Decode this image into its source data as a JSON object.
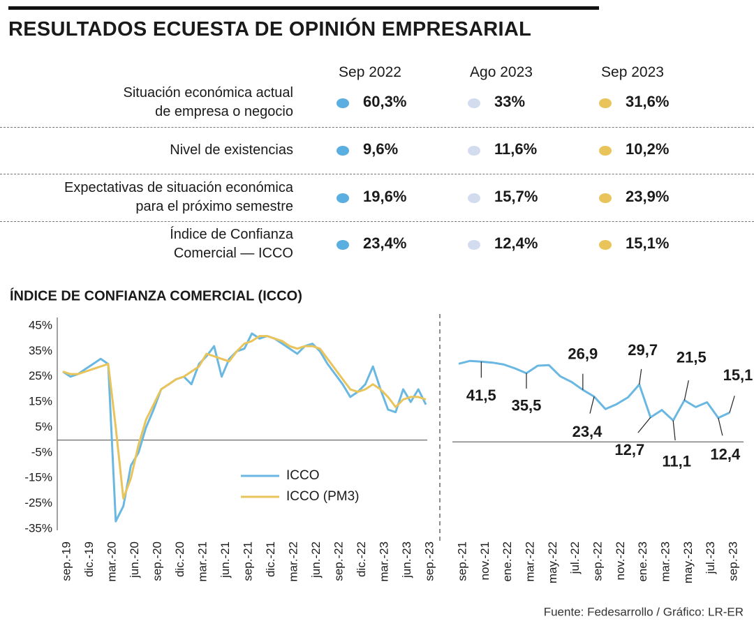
{
  "header": {
    "title": "RESULTADOS ECUESTA DE OPINIÓN EMPRESARIAL"
  },
  "table": {
    "columns": [
      {
        "label": "Sep 2022",
        "color": "#5aaee0"
      },
      {
        "label": "Ago 2023",
        "color": "#d3dcef"
      },
      {
        "label": "Sep 2023",
        "color": "#e8c45a"
      }
    ],
    "rows": [
      {
        "label": "Situación económica actual\nde empresa o negocio",
        "values": [
          "60,3%",
          "33%",
          "31,6%"
        ]
      },
      {
        "label": "Nivel de existencias",
        "values": [
          "9,6%",
          "11,6%",
          "10,2%"
        ]
      },
      {
        "label": "Expectativas de situación económica\npara el próximo semestre",
        "values": [
          "19,6%",
          "15,7%",
          "23,9%"
        ]
      },
      {
        "label": "Índice de Confianza\nComercial — ICCO",
        "values": [
          "23,4%",
          "12,4%",
          "15,1%"
        ]
      }
    ]
  },
  "chart_data": [
    {
      "type": "line",
      "title": "ÍNDICE DE CONFIANZA COMERCIAL (ICCO)",
      "categories": [
        "sep.-19",
        null,
        null,
        "dic.-19",
        null,
        null,
        "mar.-20",
        null,
        null,
        "jun.-20",
        null,
        null,
        "sep.-20",
        null,
        null,
        "dic.-20",
        null,
        null,
        "mar.-21",
        null,
        null,
        "jun.-21",
        null,
        null,
        "sep.-21",
        null,
        null,
        "dic.-21",
        null,
        null,
        "mar.-22",
        null,
        null,
        "jun.-22",
        null,
        null,
        "sep.-22",
        null,
        null,
        "dic.-22",
        null,
        null,
        "mar.-23",
        null,
        null,
        "jun.-23",
        null,
        null,
        "sep.-23"
      ],
      "series": [
        {
          "name": "ICCO",
          "color": "#6ab8e2",
          "values": [
            27,
            25,
            26,
            28,
            30,
            32,
            30,
            -32,
            -26,
            -10,
            -5,
            5,
            12,
            20,
            22,
            24,
            25,
            22,
            30,
            33,
            37,
            25,
            32,
            35,
            36,
            42,
            40,
            41,
            40,
            38,
            36,
            34,
            37,
            38,
            35,
            30,
            26,
            22,
            17,
            19,
            22,
            29,
            20,
            12,
            11,
            20,
            15,
            20,
            14
          ]
        },
        {
          "name": "ICCO (PM3)",
          "color": "#e8c45a",
          "values": [
            27,
            26,
            26,
            27,
            28,
            29,
            30,
            5,
            -23,
            -15,
            -2,
            8,
            14,
            20,
            22,
            24,
            25,
            27,
            29,
            34,
            33,
            32,
            31,
            35,
            38,
            39,
            41,
            41,
            40,
            39,
            37,
            36,
            37,
            37,
            36,
            32,
            28,
            24,
            20,
            19,
            20,
            22,
            20,
            17,
            13,
            16,
            17,
            17,
            16
          ]
        }
      ],
      "ylim": [
        -35,
        45
      ],
      "yticks": [
        {
          "value": 45,
          "label": "45%"
        },
        {
          "value": 35,
          "label": "35%"
        },
        {
          "value": 25,
          "label": "25%"
        },
        {
          "value": 15,
          "label": "15%"
        },
        {
          "value": 5,
          "label": "5%"
        },
        {
          "value": -5,
          "label": "-5%"
        },
        {
          "value": -15,
          "label": "-15%"
        },
        {
          "value": -25,
          "label": "-25%"
        },
        {
          "value": -35,
          "label": "-35%"
        }
      ],
      "grid": false
    },
    {
      "type": "line",
      "categories": [
        "sep.-21",
        null,
        "nov.-21",
        null,
        "ene.-22",
        null,
        "mar.-22",
        null,
        "may.-22",
        null,
        "jul.-22",
        null,
        "sep.-22",
        null,
        "nov.-22",
        null,
        "ene.-23",
        null,
        "mar.-23",
        null,
        "may.-23",
        null,
        "jul.-23",
        null,
        "sep.-23"
      ],
      "values": [
        40.4,
        41.9,
        41.5,
        41,
        40,
        38,
        35.5,
        39.4,
        39.7,
        33.9,
        31,
        26.9,
        23.4,
        17,
        19.5,
        23,
        29.7,
        12.7,
        16.5,
        11.1,
        21.5,
        18,
        20.5,
        12.4,
        15.1
      ],
      "value_labels": [
        null,
        null,
        "41,5",
        null,
        null,
        null,
        "35,5",
        null,
        null,
        null,
        null,
        "26,9",
        "23,4",
        null,
        null,
        null,
        "29,7",
        "12,7",
        null,
        "11,1",
        "21,5",
        null,
        null,
        "12,4",
        "15,1"
      ],
      "color": "#6ab8e2",
      "ylim": [
        -45,
        60
      ]
    }
  ],
  "footer": "Fuente: Fedesarrollo / Gráfico: LR-ER"
}
